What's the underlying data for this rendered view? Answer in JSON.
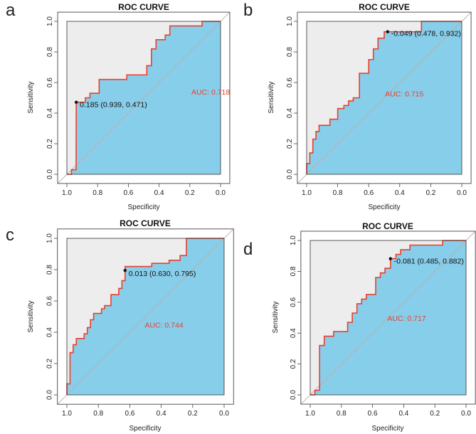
{
  "colors": {
    "outside_fill": "#ededed",
    "auc_fill": "#87ceeb",
    "curve": "#e8402e",
    "diagonal": "#c9a99a",
    "auc_text": "#e8402e"
  },
  "chart_data": [
    {
      "type": "line",
      "panel_label": "a",
      "title": "ROC CURVE",
      "xlabel": "Specificity",
      "ylabel": "Sensitivity",
      "xlim": [
        1.0,
        0.0
      ],
      "ylim": [
        0.0,
        1.0
      ],
      "x_ticks": [
        "1.0",
        "0.8",
        "0.6",
        "0.4",
        "0.2",
        "0.0"
      ],
      "y_ticks": [
        "0.0",
        "0.2",
        "0.4",
        "0.6",
        "0.8",
        "1.0"
      ],
      "auc_label": "AUC: 0.718",
      "threshold_label": "0.185 (0.939, 0.471)",
      "threshold_point": [
        0.939,
        0.471
      ],
      "roc_points": [
        [
          1.0,
          0.0
        ],
        [
          0.97,
          0.0
        ],
        [
          0.97,
          0.03
        ],
        [
          0.94,
          0.03
        ],
        [
          0.939,
          0.471
        ],
        [
          0.88,
          0.471
        ],
        [
          0.88,
          0.5
        ],
        [
          0.85,
          0.5
        ],
        [
          0.85,
          0.53
        ],
        [
          0.79,
          0.53
        ],
        [
          0.79,
          0.62
        ],
        [
          0.61,
          0.62
        ],
        [
          0.61,
          0.65
        ],
        [
          0.48,
          0.65
        ],
        [
          0.48,
          0.71
        ],
        [
          0.45,
          0.71
        ],
        [
          0.45,
          0.82
        ],
        [
          0.42,
          0.82
        ],
        [
          0.42,
          0.88
        ],
        [
          0.36,
          0.88
        ],
        [
          0.36,
          0.91
        ],
        [
          0.33,
          0.91
        ],
        [
          0.33,
          0.97
        ],
        [
          0.12,
          0.97
        ],
        [
          0.12,
          1.0
        ],
        [
          0.0,
          1.0
        ]
      ]
    },
    {
      "type": "line",
      "panel_label": "b",
      "title": "ROC CURVE",
      "xlabel": "Specificity",
      "ylabel": "Sensitivity",
      "xlim": [
        1.0,
        0.0
      ],
      "ylim": [
        0.0,
        1.0
      ],
      "x_ticks": [
        "1.0",
        "0.8",
        "0.6",
        "0.4",
        "0.2",
        "0.0"
      ],
      "y_ticks": [
        "0.0",
        "0.2",
        "0.4",
        "0.6",
        "0.8",
        "1.0"
      ],
      "auc_label": "AUC: 0.715",
      "threshold_label": "-0.049 (0.478, 0.932)",
      "threshold_point": [
        0.478,
        0.932
      ],
      "roc_points": [
        [
          1.0,
          0.0
        ],
        [
          1.0,
          0.07
        ],
        [
          0.98,
          0.07
        ],
        [
          0.98,
          0.14
        ],
        [
          0.96,
          0.14
        ],
        [
          0.96,
          0.23
        ],
        [
          0.94,
          0.23
        ],
        [
          0.94,
          0.28
        ],
        [
          0.92,
          0.28
        ],
        [
          0.92,
          0.32
        ],
        [
          0.85,
          0.32
        ],
        [
          0.85,
          0.36
        ],
        [
          0.8,
          0.36
        ],
        [
          0.8,
          0.43
        ],
        [
          0.76,
          0.43
        ],
        [
          0.76,
          0.45
        ],
        [
          0.73,
          0.45
        ],
        [
          0.73,
          0.48
        ],
        [
          0.7,
          0.48
        ],
        [
          0.7,
          0.5
        ],
        [
          0.66,
          0.5
        ],
        [
          0.66,
          0.66
        ],
        [
          0.6,
          0.66
        ],
        [
          0.6,
          0.75
        ],
        [
          0.57,
          0.75
        ],
        [
          0.57,
          0.82
        ],
        [
          0.54,
          0.82
        ],
        [
          0.54,
          0.89
        ],
        [
          0.5,
          0.89
        ],
        [
          0.5,
          0.932
        ],
        [
          0.26,
          0.932
        ],
        [
          0.26,
          1.0
        ],
        [
          0.0,
          1.0
        ]
      ]
    },
    {
      "type": "line",
      "panel_label": "c",
      "title": "ROC CURVE",
      "xlabel": "Specificity",
      "ylabel": "Sensitivity",
      "xlim": [
        1.0,
        0.0
      ],
      "ylim": [
        0.0,
        1.0
      ],
      "x_ticks": [
        "1.0",
        "0.8",
        "0.6",
        "0.4",
        "0.2",
        "0.0"
      ],
      "y_ticks": [
        "0.0",
        "0.2",
        "0.4",
        "0.6",
        "0.8",
        "1.0"
      ],
      "auc_label": "AUC: 0.744",
      "threshold_label": "0.013 (0.630, 0.795)",
      "threshold_point": [
        0.63,
        0.795
      ],
      "roc_points": [
        [
          1.0,
          0.0
        ],
        [
          1.0,
          0.07
        ],
        [
          0.98,
          0.07
        ],
        [
          0.98,
          0.27
        ],
        [
          0.96,
          0.27
        ],
        [
          0.96,
          0.32
        ],
        [
          0.94,
          0.32
        ],
        [
          0.94,
          0.36
        ],
        [
          0.89,
          0.36
        ],
        [
          0.89,
          0.39
        ],
        [
          0.87,
          0.39
        ],
        [
          0.87,
          0.43
        ],
        [
          0.85,
          0.43
        ],
        [
          0.85,
          0.48
        ],
        [
          0.83,
          0.48
        ],
        [
          0.83,
          0.52
        ],
        [
          0.78,
          0.52
        ],
        [
          0.78,
          0.55
        ],
        [
          0.76,
          0.55
        ],
        [
          0.76,
          0.57
        ],
        [
          0.72,
          0.57
        ],
        [
          0.72,
          0.64
        ],
        [
          0.67,
          0.64
        ],
        [
          0.67,
          0.68
        ],
        [
          0.65,
          0.68
        ],
        [
          0.65,
          0.73
        ],
        [
          0.63,
          0.73
        ],
        [
          0.63,
          0.82
        ],
        [
          0.46,
          0.82
        ],
        [
          0.46,
          0.84
        ],
        [
          0.35,
          0.84
        ],
        [
          0.35,
          0.86
        ],
        [
          0.28,
          0.86
        ],
        [
          0.28,
          0.89
        ],
        [
          0.24,
          0.89
        ],
        [
          0.24,
          1.0
        ],
        [
          0.0,
          1.0
        ]
      ]
    },
    {
      "type": "line",
      "panel_label": "d",
      "title": "ROC CURVE",
      "xlabel": "Specificity",
      "ylabel": "Sensitivity",
      "xlim": [
        1.0,
        0.0
      ],
      "ylim": [
        0.0,
        1.0
      ],
      "x_ticks": [
        "1.0",
        "0.8",
        "0.6",
        "0.4",
        "0.2",
        "0.0"
      ],
      "y_ticks": [
        "0.0",
        "0.2",
        "0.4",
        "0.6",
        "0.8",
        "1.0"
      ],
      "auc_label": "AUC: 0.717",
      "threshold_label": "-0.081 (0.485, 0.882)",
      "threshold_point": [
        0.485,
        0.882
      ],
      "roc_points": [
        [
          1.0,
          0.0
        ],
        [
          0.97,
          0.0
        ],
        [
          0.97,
          0.03
        ],
        [
          0.94,
          0.03
        ],
        [
          0.94,
          0.32
        ],
        [
          0.91,
          0.32
        ],
        [
          0.91,
          0.38
        ],
        [
          0.85,
          0.38
        ],
        [
          0.85,
          0.41
        ],
        [
          0.76,
          0.41
        ],
        [
          0.76,
          0.47
        ],
        [
          0.73,
          0.47
        ],
        [
          0.73,
          0.53
        ],
        [
          0.7,
          0.53
        ],
        [
          0.7,
          0.59
        ],
        [
          0.67,
          0.59
        ],
        [
          0.67,
          0.62
        ],
        [
          0.64,
          0.62
        ],
        [
          0.64,
          0.65
        ],
        [
          0.58,
          0.65
        ],
        [
          0.58,
          0.76
        ],
        [
          0.55,
          0.76
        ],
        [
          0.55,
          0.79
        ],
        [
          0.52,
          0.79
        ],
        [
          0.52,
          0.82
        ],
        [
          0.485,
          0.82
        ],
        [
          0.485,
          0.882
        ],
        [
          0.45,
          0.882
        ],
        [
          0.45,
          0.91
        ],
        [
          0.42,
          0.91
        ],
        [
          0.42,
          0.94
        ],
        [
          0.36,
          0.94
        ],
        [
          0.36,
          0.97
        ],
        [
          0.15,
          0.97
        ],
        [
          0.15,
          1.0
        ],
        [
          0.0,
          1.0
        ]
      ]
    }
  ]
}
